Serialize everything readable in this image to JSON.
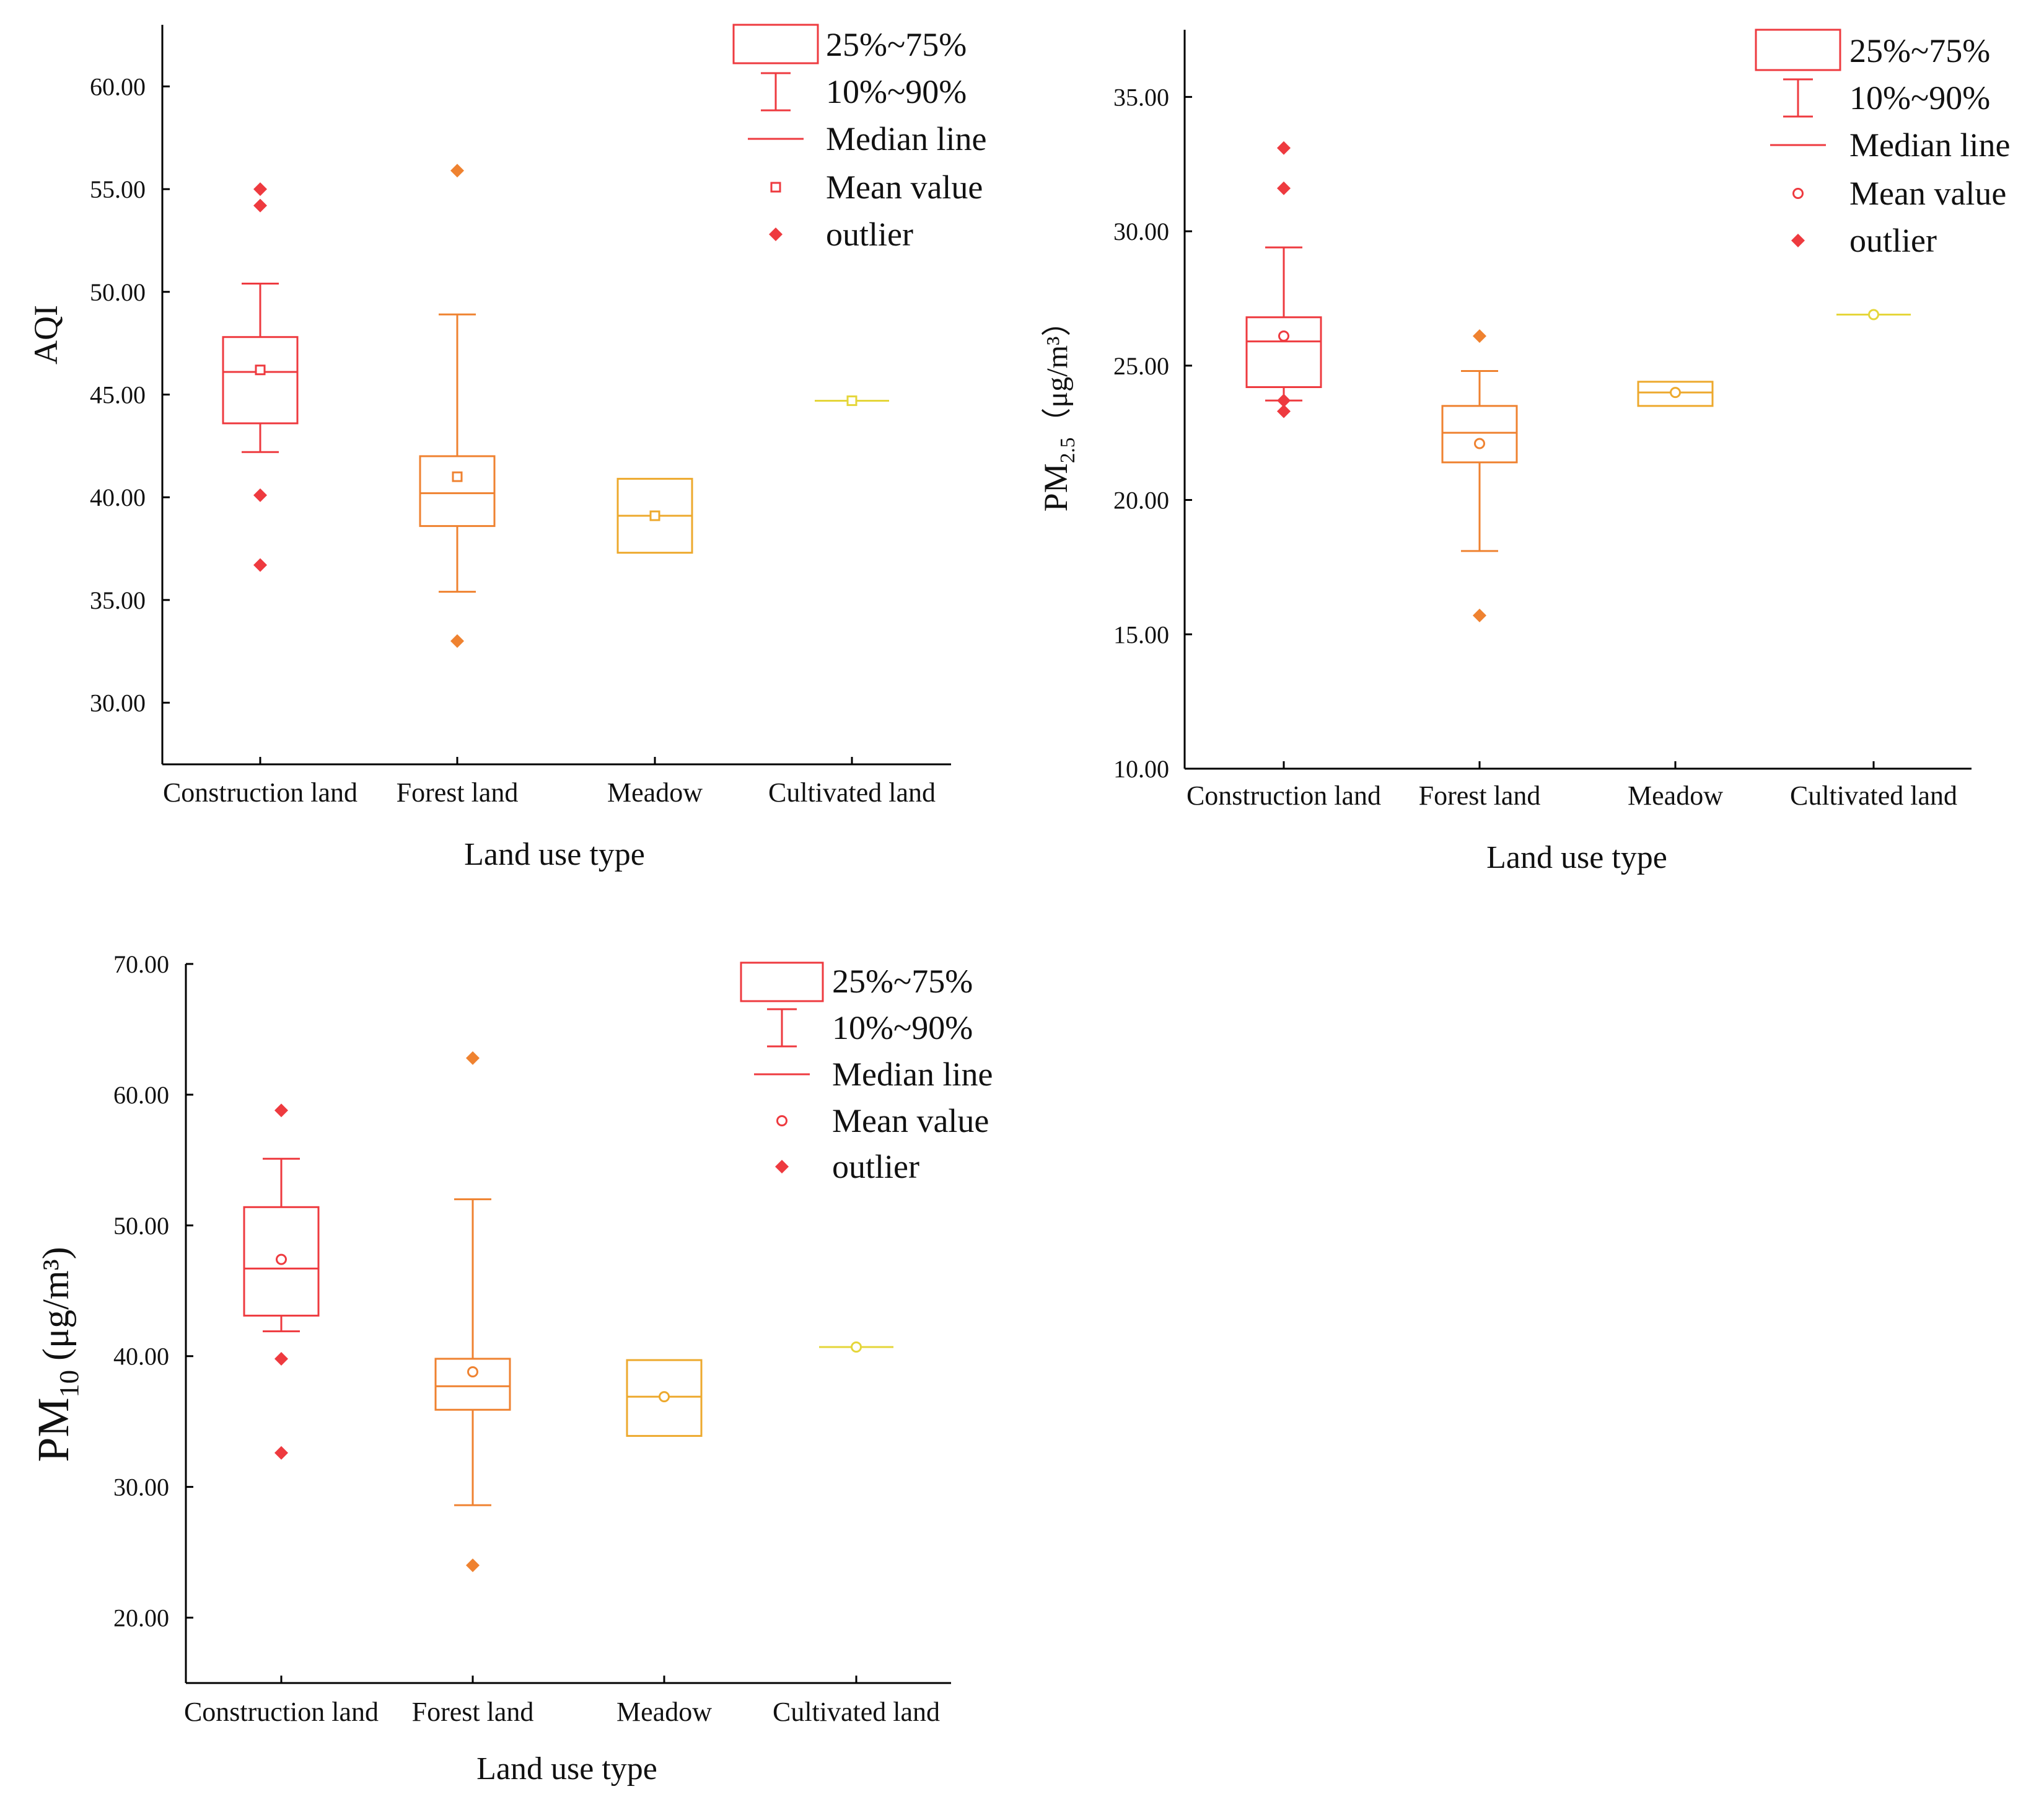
{
  "colors": {
    "construction": "#ee3a3f",
    "forest": "#ef8230",
    "meadow": "#eda92d",
    "cultivated": "#e5d63a",
    "axis": "#000000"
  },
  "chart_data": [
    {
      "id": "aqi",
      "type": "box",
      "title": "",
      "ylabel": "AQI",
      "xlabel": "Land use type",
      "ylim": [
        27,
        63
      ],
      "yticks": [
        30,
        35,
        40,
        45,
        50,
        55,
        60
      ],
      "tick_labels": [
        "30.00",
        "35.00",
        "40.00",
        "45.00",
        "50.00",
        "55.00",
        "60.00"
      ],
      "categories": [
        "Construction land",
        "Forest land",
        "Meadow",
        "Cultivated land"
      ],
      "mean_marker": "square",
      "legend_position": "top-right",
      "legend": [
        "25%~75%",
        "10%~90%",
        "Median line",
        "Mean value",
        "outlier"
      ],
      "series": [
        {
          "name": "Construction land",
          "color_key": "construction",
          "q1": 43.6,
          "q3": 47.8,
          "median": 46.1,
          "mean": 46.2,
          "p10": 42.2,
          "p90": 50.4,
          "outliers": [
            55.0,
            54.2,
            40.1,
            36.7
          ]
        },
        {
          "name": "Forest land",
          "color_key": "forest",
          "q1": 38.6,
          "q3": 42.0,
          "median": 40.2,
          "mean": 41.0,
          "p10": 35.4,
          "p90": 48.9,
          "outliers": [
            55.9,
            33.0
          ]
        },
        {
          "name": "Meadow",
          "color_key": "meadow",
          "q1": 37.3,
          "q3": 40.9,
          "median": 39.1,
          "mean": 39.1,
          "p10": null,
          "p90": null,
          "outliers": []
        },
        {
          "name": "Cultivated land",
          "color_key": "cultivated",
          "q1": 44.7,
          "q3": 44.7,
          "median": 44.7,
          "mean": 44.7,
          "p10": null,
          "p90": null,
          "outliers": []
        }
      ]
    },
    {
      "id": "pm25",
      "type": "box",
      "title": "",
      "ylabel": "PM2.5 （μg/m³）",
      "ylabel_main": "PM",
      "ylabel_sub": "2.5",
      "ylabel_unit": "（μg/m³）",
      "xlabel": "Land use type",
      "ylim": [
        10,
        37.5
      ],
      "yticks": [
        10,
        15,
        20,
        25,
        30,
        35
      ],
      "tick_labels": [
        "10.00",
        "15.00",
        "20.00",
        "25.00",
        "30.00",
        "35.00"
      ],
      "categories": [
        "Construction land",
        "Forest land",
        "Meadow",
        "Cultivated land"
      ],
      "mean_marker": "circle",
      "legend_position": "top-right",
      "legend": [
        "25%~75%",
        "10%~90%",
        "Median line",
        "Mean value",
        "outlier"
      ],
      "series": [
        {
          "name": "Construction land",
          "color_key": "construction",
          "q1": 24.2,
          "q3": 26.8,
          "median": 25.9,
          "mean": 26.1,
          "p10": 23.7,
          "p90": 29.4,
          "outliers": [
            33.1,
            31.6,
            23.7,
            23.3
          ]
        },
        {
          "name": "Forest land",
          "color_key": "forest",
          "q1": 21.4,
          "q3": 23.5,
          "median": 22.5,
          "mean": 22.1,
          "p10": 18.1,
          "p90": 24.8,
          "outliers": [
            26.1,
            15.7
          ]
        },
        {
          "name": "Meadow",
          "color_key": "meadow",
          "q1": 23.5,
          "q3": 24.4,
          "median": 24.0,
          "mean": 24.0,
          "p10": null,
          "p90": null,
          "outliers": []
        },
        {
          "name": "Cultivated land",
          "color_key": "cultivated",
          "q1": 26.9,
          "q3": 26.9,
          "median": 26.9,
          "mean": 26.9,
          "p10": null,
          "p90": null,
          "outliers": []
        }
      ]
    },
    {
      "id": "pm10",
      "type": "box",
      "title": "",
      "ylabel": "PM10 (μg/m³)",
      "ylabel_main": "PM",
      "ylabel_sub": "10",
      "ylabel_unit": " (μg/m³)",
      "xlabel": "Land use type",
      "ylim": [
        15,
        70
      ],
      "yticks": [
        20,
        30,
        40,
        50,
        60,
        70
      ],
      "tick_labels": [
        "20.00",
        "30.00",
        "40.00",
        "50.00",
        "60.00",
        "70.00"
      ],
      "categories": [
        "Construction land",
        "Forest land",
        "Meadow",
        "Cultivated land"
      ],
      "mean_marker": "circle",
      "legend_position": "top-right",
      "legend": [
        "25%~75%",
        "10%~90%",
        "Median line",
        "Mean value",
        "outlier"
      ],
      "series": [
        {
          "name": "Construction land",
          "color_key": "construction",
          "q1": 43.1,
          "q3": 51.4,
          "median": 46.7,
          "mean": 47.4,
          "p10": 41.9,
          "p90": 55.1,
          "outliers": [
            58.8,
            39.8,
            32.6
          ]
        },
        {
          "name": "Forest land",
          "color_key": "forest",
          "q1": 35.9,
          "q3": 39.8,
          "median": 37.7,
          "mean": 38.8,
          "p10": 28.6,
          "p90": 52.0,
          "outliers": [
            62.8,
            24.0
          ]
        },
        {
          "name": "Meadow",
          "color_key": "meadow",
          "q1": 33.9,
          "q3": 39.7,
          "median": 36.9,
          "mean": 36.9,
          "p10": null,
          "p90": null,
          "outliers": []
        },
        {
          "name": "Cultivated land",
          "color_key": "cultivated",
          "q1": 40.7,
          "q3": 40.7,
          "median": 40.7,
          "mean": 40.7,
          "p10": null,
          "p90": null,
          "outliers": []
        }
      ]
    }
  ]
}
